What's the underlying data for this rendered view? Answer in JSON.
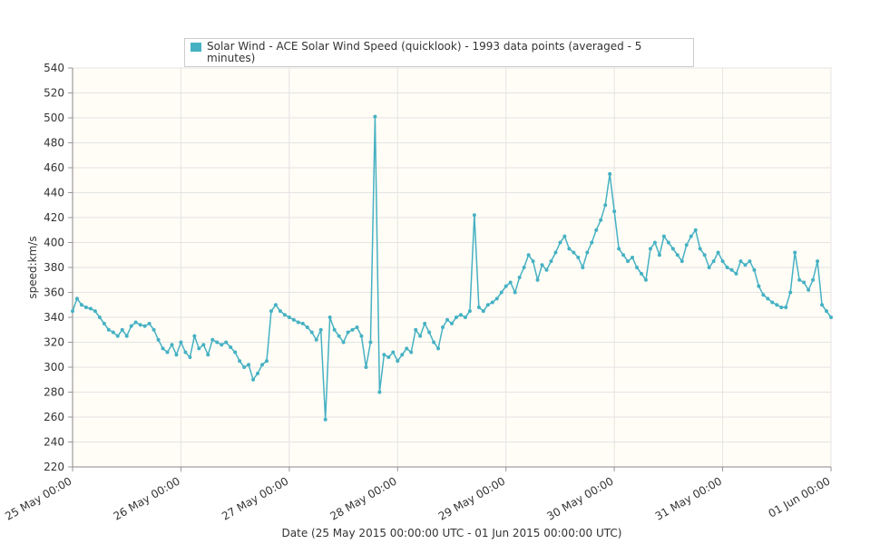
{
  "chart_data": {
    "type": "line",
    "legend": "Solar Wind - ACE Solar Wind Speed (quicklook) - 1993 data points (averaged - 5 minutes)",
    "xlabel": "Date (25 May 2015 00:00:00 UTC - 01 Jun 2015 00:00:00 UTC)",
    "ylabel": "speed:km/s",
    "xlim": [
      "2015-05-25 00:00",
      "2015-06-01 00:00"
    ],
    "xticks": [
      {
        "value": "2015-05-25 00:00",
        "label": "25 May 00:00"
      },
      {
        "value": "2015-05-26 00:00",
        "label": "26 May 00:00"
      },
      {
        "value": "2015-05-27 00:00",
        "label": "27 May 00:00"
      },
      {
        "value": "2015-05-28 00:00",
        "label": "28 May 00:00"
      },
      {
        "value": "2015-05-29 00:00",
        "label": "29 May 00:00"
      },
      {
        "value": "2015-05-30 00:00",
        "label": "30 May 00:00"
      },
      {
        "value": "2015-05-31 00:00",
        "label": "31 May 00:00"
      },
      {
        "value": "2015-06-01 00:00",
        "label": "01 Jun 00:00"
      }
    ],
    "ylim": [
      220,
      540
    ],
    "yticks": [
      220,
      240,
      260,
      280,
      300,
      320,
      340,
      360,
      380,
      400,
      420,
      440,
      460,
      480,
      500,
      520,
      540
    ],
    "grid": true,
    "series": [
      {
        "name": "Solar Wind - ACE Solar Wind Speed (quicklook) - 1993 data points (averaged - 5 minutes)",
        "color": "#46b1c3",
        "start": "2015-05-25 00:00",
        "step_hours": 1,
        "values": [
          345,
          355,
          350,
          348,
          347,
          345,
          340,
          335,
          330,
          328,
          325,
          330,
          325,
          333,
          336,
          334,
          333,
          335,
          330,
          322,
          315,
          312,
          318,
          310,
          320,
          312,
          308,
          325,
          315,
          318,
          310,
          322,
          320,
          318,
          320,
          316,
          312,
          305,
          300,
          302,
          290,
          295,
          302,
          305,
          345,
          350,
          345,
          342,
          340,
          338,
          336,
          335,
          332,
          328,
          322,
          330,
          258,
          340,
          330,
          325,
          320,
          328,
          330,
          332,
          325,
          300,
          320,
          501,
          280,
          310,
          308,
          312,
          305,
          310,
          315,
          312,
          330,
          325,
          335,
          328,
          320,
          315,
          332,
          338,
          335,
          340,
          342,
          340,
          345,
          422,
          348,
          345,
          350,
          352,
          355,
          360,
          365,
          368,
          360,
          372,
          380,
          390,
          385,
          370,
          382,
          378,
          385,
          392,
          400,
          405,
          395,
          392,
          388,
          380,
          392,
          400,
          410,
          418,
          430,
          455,
          425,
          395,
          390,
          385,
          388,
          380,
          375,
          370,
          395,
          400,
          390,
          405,
          400,
          395,
          390,
          385,
          398,
          405,
          410,
          395,
          390,
          380,
          385,
          392,
          385,
          380,
          378,
          375,
          385,
          382,
          385,
          378,
          365,
          358,
          355,
          352,
          350,
          348,
          348,
          360,
          392,
          370,
          368,
          362,
          370,
          385,
          350,
          345,
          340
        ]
      }
    ]
  }
}
